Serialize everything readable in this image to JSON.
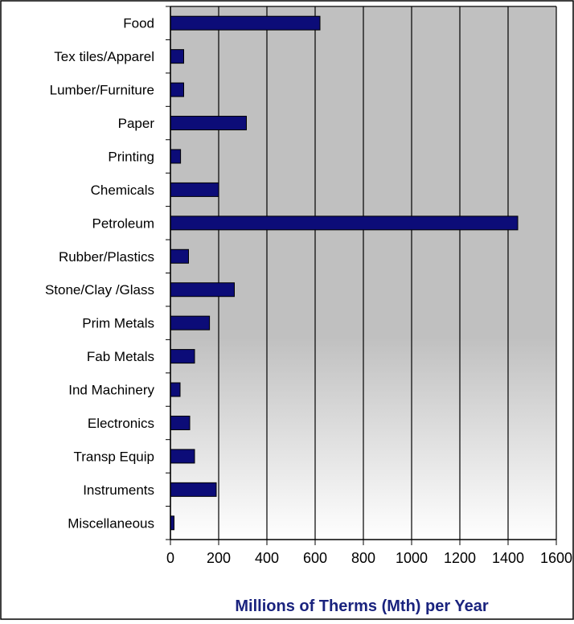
{
  "colors": {
    "bar_fill": "#0c0c78",
    "bar_stroke": "#000000",
    "plot_top": "#c0c0c0",
    "plot_bottom": "#ffffff",
    "grid": "#000000",
    "xlabel": "#1a237e"
  },
  "chart_data": {
    "type": "bar",
    "orientation": "horizontal",
    "categories": [
      "Food",
      "Tex tiles/Apparel",
      "Lumber/Furniture",
      "Paper",
      "Printing",
      "Chemicals",
      "Petroleum",
      "Rubber/Plastics",
      "Stone/Clay /Glass",
      "Prim Metals",
      "Fab Metals",
      "Ind Machinery",
      "Electronics",
      "Transp Equip",
      "Instruments",
      "Miscellaneous"
    ],
    "values": [
      620,
      55,
      55,
      315,
      42,
      200,
      1440,
      75,
      265,
      162,
      100,
      40,
      80,
      100,
      190,
      15
    ],
    "xticks": [
      "0",
      "200",
      "400",
      "600",
      "800",
      "1000",
      "1200",
      "1400",
      "1600"
    ],
    "xlim": [
      0,
      1600
    ],
    "xlabel": "Millions of Therms (Mth) per Year",
    "ylabel": "",
    "title": "",
    "grid": "vertical",
    "legend": "none"
  }
}
